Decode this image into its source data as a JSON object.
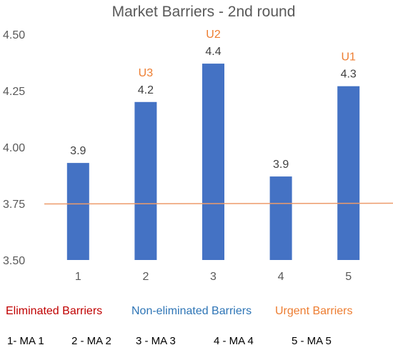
{
  "chart_data": {
    "type": "bar",
    "title": "Market Barriers - 2nd round",
    "categories": [
      "1",
      "2",
      "3",
      "4",
      "5"
    ],
    "values": [
      3.93,
      4.2,
      4.37,
      3.87,
      4.27
    ],
    "data_labels": [
      "3.9",
      "4.2",
      "4.4",
      "3.9",
      "4.3"
    ],
    "urgent_labels": [
      "",
      "U3",
      "U2",
      "",
      "U1"
    ],
    "ylim": [
      3.5,
      4.5
    ],
    "yticks": [
      "3.50",
      "3.75",
      "4.00",
      "4.25",
      "4.50"
    ],
    "ytick_values": [
      3.5,
      3.75,
      4.0,
      4.25,
      4.5
    ],
    "threshold": 3.75,
    "grid": false,
    "colors": {
      "bar": "#4472C4",
      "threshold": "#ED9B6B",
      "urgent": "#ED7D31"
    }
  },
  "legend": {
    "eliminated": "Eliminated Barriers",
    "non_eliminated": "Non-eliminated Barriers",
    "urgent": "Urgent Barriers",
    "colors": {
      "eliminated": "#C00000",
      "non_eliminated": "#2E75B6",
      "urgent": "#ED7D31"
    }
  },
  "key": [
    "1- MA 1",
    "2 - MA 2",
    "3 - MA 3",
    "4 - MA 4",
    "5 - MA 5"
  ]
}
